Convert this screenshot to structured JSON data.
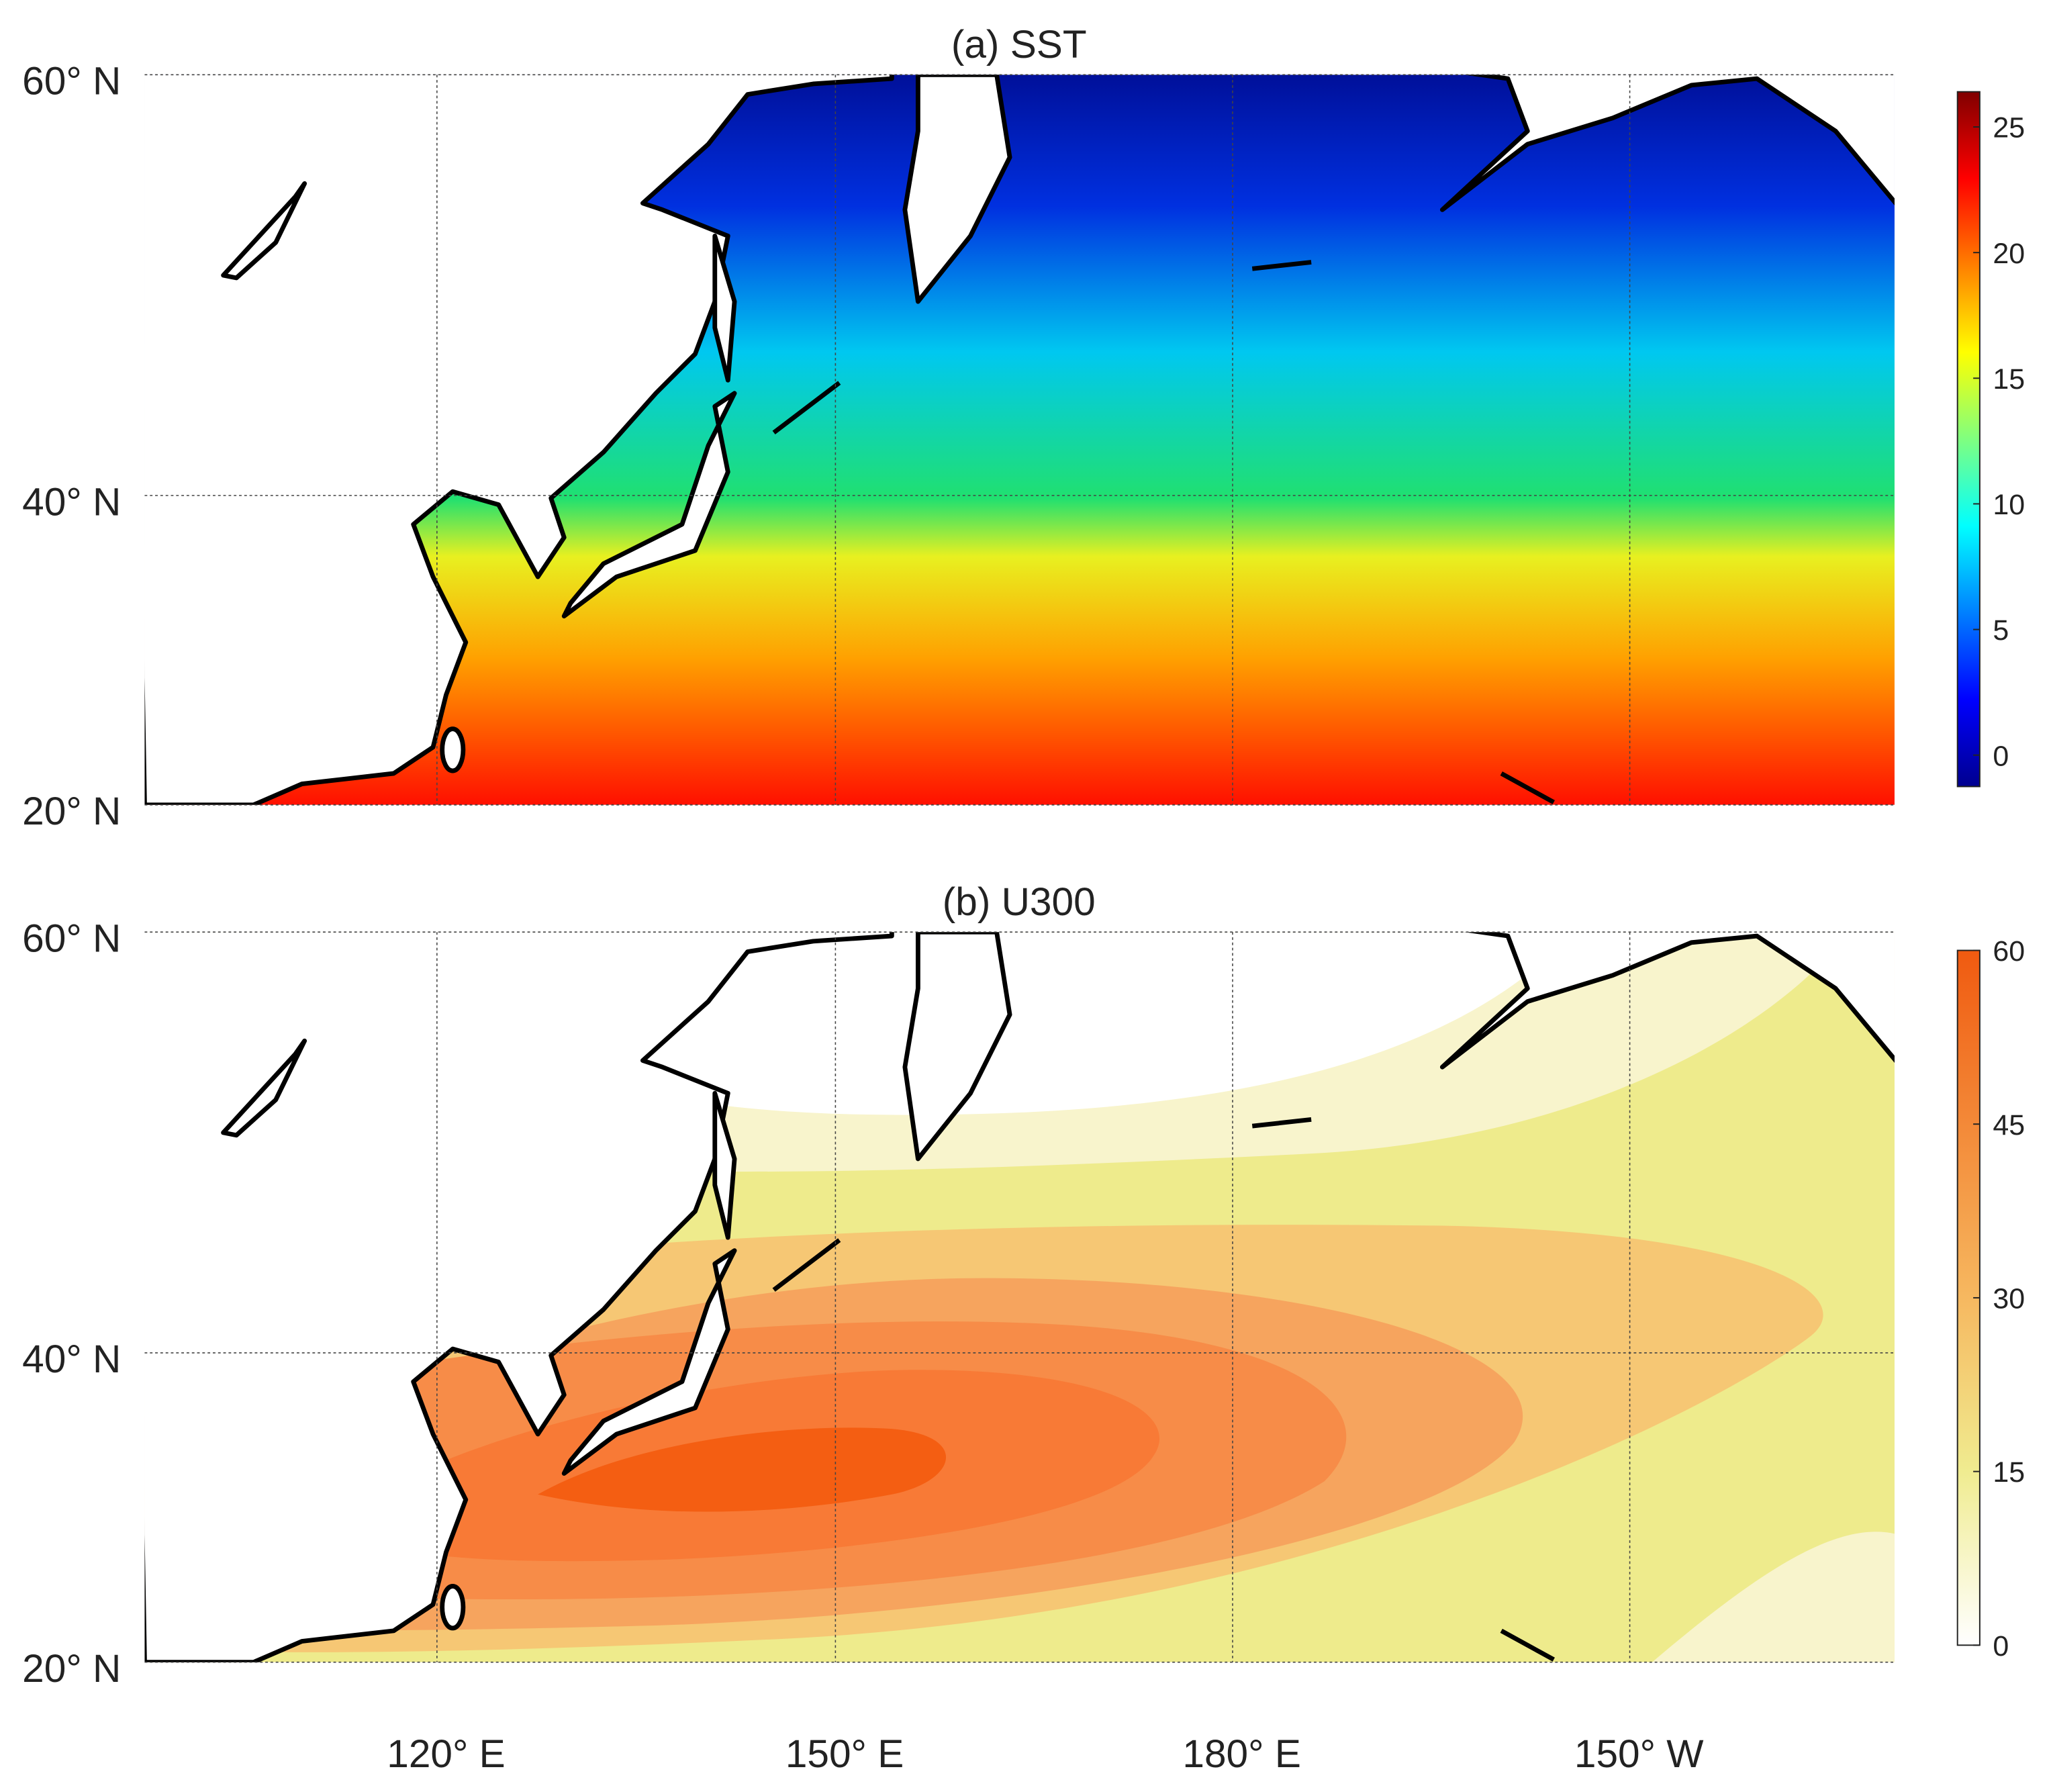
{
  "panels": [
    {
      "title": "(a) SST",
      "lat_labels": [
        "60° N",
        "40° N",
        "20° N"
      ],
      "colorbar": {
        "clim": [
          -1.25,
          26.4
        ],
        "ticks": [
          0,
          5,
          10,
          15,
          20,
          25
        ]
      }
    },
    {
      "title": "(b) U300",
      "lat_labels": [
        "60° N",
        "40° N",
        "20° N"
      ],
      "colorbar": {
        "clim": [
          0,
          60
        ],
        "ticks": [
          0,
          15,
          30,
          45,
          60
        ]
      }
    }
  ],
  "lon_labels": [
    "120° E",
    "150° E",
    "180° E",
    "150° W"
  ]
}
